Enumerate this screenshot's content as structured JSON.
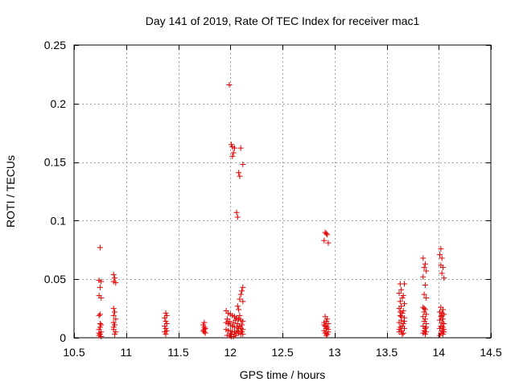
{
  "chart_data": {
    "type": "scatter",
    "title": "Day 141 of 2019, Rate Of TEC Index for receiver mac1",
    "xlabel": "GPS time / hours",
    "ylabel": "ROTI / TECUs",
    "xlim": [
      10.5,
      14.5
    ],
    "ylim": [
      0,
      0.25
    ],
    "xticks": [
      10.5,
      11,
      11.5,
      12,
      12.5,
      13,
      13.5,
      14,
      14.5
    ],
    "xtick_labels": [
      "10.5",
      "11",
      "11.5",
      "12",
      "12.5",
      "13",
      "13.5",
      "14",
      "14.5"
    ],
    "yticks": [
      0,
      0.05,
      0.1,
      0.15,
      0.2,
      0.25
    ],
    "ytick_labels": [
      "0",
      "0.05",
      "0.1",
      "0.15",
      "0.2",
      "0.25"
    ],
    "grid": true,
    "marker": "+",
    "marker_color": "#e00000",
    "series": [
      {
        "name": "mac1",
        "points": [
          [
            10.75,
            0.077
          ],
          [
            10.74,
            0.049
          ],
          [
            10.76,
            0.048
          ],
          [
            10.75,
            0.043
          ],
          [
            10.74,
            0.036
          ],
          [
            10.76,
            0.034
          ],
          [
            10.75,
            0.02
          ],
          [
            10.74,
            0.019
          ],
          [
            10.76,
            0.011
          ],
          [
            10.75,
            0.009
          ],
          [
            10.74,
            0.007
          ],
          [
            10.76,
            0.005
          ],
          [
            10.75,
            0.003
          ],
          [
            10.74,
            0.002
          ],
          [
            10.76,
            0.001
          ],
          [
            10.75,
            0.012
          ],
          [
            10.74,
            0.004
          ],
          [
            10.88,
            0.054
          ],
          [
            10.89,
            0.051
          ],
          [
            10.88,
            0.048
          ],
          [
            10.9,
            0.047
          ],
          [
            10.88,
            0.025
          ],
          [
            10.89,
            0.022
          ],
          [
            10.88,
            0.019
          ],
          [
            10.9,
            0.016
          ],
          [
            10.88,
            0.013
          ],
          [
            10.89,
            0.011
          ],
          [
            10.88,
            0.007
          ],
          [
            10.9,
            0.005
          ],
          [
            10.89,
            0.003
          ],
          [
            10.88,
            0.009
          ],
          [
            11.38,
            0.021
          ],
          [
            11.39,
            0.019
          ],
          [
            11.37,
            0.017
          ],
          [
            11.38,
            0.014
          ],
          [
            11.39,
            0.012
          ],
          [
            11.37,
            0.01
          ],
          [
            11.38,
            0.008
          ],
          [
            11.39,
            0.006
          ],
          [
            11.37,
            0.005
          ],
          [
            11.38,
            0.003
          ],
          [
            11.75,
            0.013
          ],
          [
            11.74,
            0.011
          ],
          [
            11.75,
            0.009
          ],
          [
            11.76,
            0.008
          ],
          [
            11.74,
            0.006
          ],
          [
            11.75,
            0.005
          ],
          [
            11.76,
            0.004
          ],
          [
            11.75,
            0.007
          ],
          [
            11.99,
            0.216
          ],
          [
            12.01,
            0.165
          ],
          [
            12.02,
            0.163
          ],
          [
            12.04,
            0.162
          ],
          [
            12.1,
            0.162
          ],
          [
            12.03,
            0.158
          ],
          [
            12.02,
            0.155
          ],
          [
            12.12,
            0.148
          ],
          [
            12.08,
            0.141
          ],
          [
            12.09,
            0.138
          ],
          [
            12.06,
            0.107
          ],
          [
            12.07,
            0.103
          ],
          [
            12.12,
            0.043
          ],
          [
            12.11,
            0.04
          ],
          [
            12.1,
            0.037
          ],
          [
            12.09,
            0.033
          ],
          [
            12.12,
            0.031
          ],
          [
            12.07,
            0.027
          ],
          [
            12.08,
            0.024
          ],
          [
            11.96,
            0.023
          ],
          [
            11.98,
            0.021
          ],
          [
            12.0,
            0.02
          ],
          [
            12.02,
            0.019
          ],
          [
            12.04,
            0.018
          ],
          [
            12.06,
            0.017
          ],
          [
            12.08,
            0.016
          ],
          [
            12.1,
            0.015
          ],
          [
            12.12,
            0.014
          ],
          [
            11.96,
            0.013
          ],
          [
            11.98,
            0.012
          ],
          [
            12.0,
            0.011
          ],
          [
            12.02,
            0.01
          ],
          [
            12.04,
            0.009
          ],
          [
            12.06,
            0.009
          ],
          [
            12.08,
            0.008
          ],
          [
            12.1,
            0.008
          ],
          [
            12.12,
            0.007
          ],
          [
            11.96,
            0.007
          ],
          [
            11.98,
            0.006
          ],
          [
            12.0,
            0.006
          ],
          [
            12.02,
            0.005
          ],
          [
            12.04,
            0.005
          ],
          [
            12.06,
            0.004
          ],
          [
            12.08,
            0.004
          ],
          [
            12.1,
            0.003
          ],
          [
            12.12,
            0.003
          ],
          [
            11.97,
            0.002
          ],
          [
            11.99,
            0.002
          ],
          [
            12.01,
            0.001
          ],
          [
            12.03,
            0.001
          ],
          [
            12.05,
            0.015
          ],
          [
            12.07,
            0.012
          ],
          [
            12.09,
            0.01
          ],
          [
            12.11,
            0.005
          ],
          [
            11.97,
            0.016
          ],
          [
            11.99,
            0.014
          ],
          [
            12.01,
            0.003
          ],
          [
            12.03,
            0.013
          ],
          [
            12.05,
            0.002
          ],
          [
            12.07,
            0.006
          ],
          [
            12.09,
            0.019
          ],
          [
            12.11,
            0.011
          ],
          [
            12.91,
            0.09
          ],
          [
            12.92,
            0.089
          ],
          [
            12.93,
            0.088
          ],
          [
            12.9,
            0.083
          ],
          [
            12.94,
            0.081
          ],
          [
            12.91,
            0.018
          ],
          [
            12.93,
            0.016
          ],
          [
            12.92,
            0.014
          ],
          [
            12.9,
            0.013
          ],
          [
            12.94,
            0.012
          ],
          [
            12.91,
            0.01
          ],
          [
            12.93,
            0.009
          ],
          [
            12.92,
            0.008
          ],
          [
            12.9,
            0.006
          ],
          [
            12.94,
            0.005
          ],
          [
            12.91,
            0.004
          ],
          [
            12.93,
            0.003
          ],
          [
            12.92,
            0.002
          ],
          [
            12.9,
            0.011
          ],
          [
            12.94,
            0.007
          ],
          [
            13.63,
            0.046
          ],
          [
            13.67,
            0.046
          ],
          [
            13.64,
            0.041
          ],
          [
            13.62,
            0.038
          ],
          [
            13.66,
            0.036
          ],
          [
            13.65,
            0.034
          ],
          [
            13.63,
            0.031
          ],
          [
            13.67,
            0.029
          ],
          [
            13.64,
            0.027
          ],
          [
            13.62,
            0.025
          ],
          [
            13.66,
            0.023
          ],
          [
            13.65,
            0.021
          ],
          [
            13.63,
            0.019
          ],
          [
            13.67,
            0.017
          ],
          [
            13.64,
            0.015
          ],
          [
            13.62,
            0.013
          ],
          [
            13.66,
            0.012
          ],
          [
            13.65,
            0.01
          ],
          [
            13.63,
            0.009
          ],
          [
            13.67,
            0.008
          ],
          [
            13.64,
            0.006
          ],
          [
            13.62,
            0.005
          ],
          [
            13.66,
            0.004
          ],
          [
            13.65,
            0.003
          ],
          [
            13.63,
            0.022
          ],
          [
            13.67,
            0.014
          ],
          [
            13.64,
            0.018
          ],
          [
            13.62,
            0.007
          ],
          [
            13.85,
            0.068
          ],
          [
            13.87,
            0.063
          ],
          [
            13.86,
            0.06
          ],
          [
            13.88,
            0.057
          ],
          [
            13.85,
            0.052
          ],
          [
            13.87,
            0.045
          ],
          [
            13.86,
            0.037
          ],
          [
            13.88,
            0.034
          ],
          [
            13.85,
            0.026
          ],
          [
            13.87,
            0.024
          ],
          [
            13.86,
            0.022
          ],
          [
            13.88,
            0.02
          ],
          [
            13.85,
            0.018
          ],
          [
            13.87,
            0.016
          ],
          [
            13.86,
            0.014
          ],
          [
            13.88,
            0.012
          ],
          [
            13.85,
            0.01
          ],
          [
            13.87,
            0.008
          ],
          [
            13.86,
            0.006
          ],
          [
            13.88,
            0.005
          ],
          [
            13.85,
            0.004
          ],
          [
            13.87,
            0.003
          ],
          [
            13.86,
            0.025
          ],
          [
            13.88,
            0.009
          ],
          [
            14.02,
            0.076
          ],
          [
            14.01,
            0.071
          ],
          [
            14.03,
            0.068
          ],
          [
            14.02,
            0.062
          ],
          [
            14.04,
            0.06
          ],
          [
            14.03,
            0.055
          ],
          [
            14.05,
            0.051
          ],
          [
            14.02,
            0.026
          ],
          [
            14.04,
            0.024
          ],
          [
            14.01,
            0.022
          ],
          [
            14.03,
            0.021
          ],
          [
            14.05,
            0.02
          ],
          [
            14.02,
            0.018
          ],
          [
            14.04,
            0.016
          ],
          [
            14.01,
            0.015
          ],
          [
            14.03,
            0.013
          ],
          [
            14.05,
            0.012
          ],
          [
            14.02,
            0.01
          ],
          [
            14.04,
            0.009
          ],
          [
            14.01,
            0.008
          ],
          [
            14.03,
            0.006
          ],
          [
            14.05,
            0.005
          ],
          [
            14.02,
            0.004
          ],
          [
            14.04,
            0.003
          ],
          [
            14.01,
            0.002
          ],
          [
            14.03,
            0.019
          ],
          [
            14.05,
            0.007
          ]
        ]
      }
    ]
  }
}
